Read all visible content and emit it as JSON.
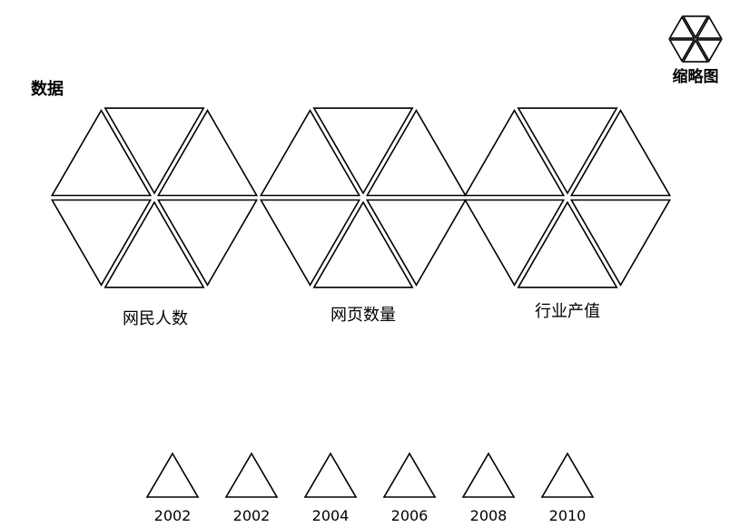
{
  "header": {
    "title": "数据",
    "thumbnail_label": "缩略图"
  },
  "clusters": [
    {
      "label": "网民人数"
    },
    {
      "label": "网页数量"
    },
    {
      "label": "行业产值"
    }
  ],
  "timeline": {
    "years": [
      "2002",
      "2002",
      "2004",
      "2006",
      "2008",
      "2010"
    ]
  },
  "colors": {
    "stroke": "#000000",
    "fill": "#ffffff",
    "background": "#ffffff"
  }
}
